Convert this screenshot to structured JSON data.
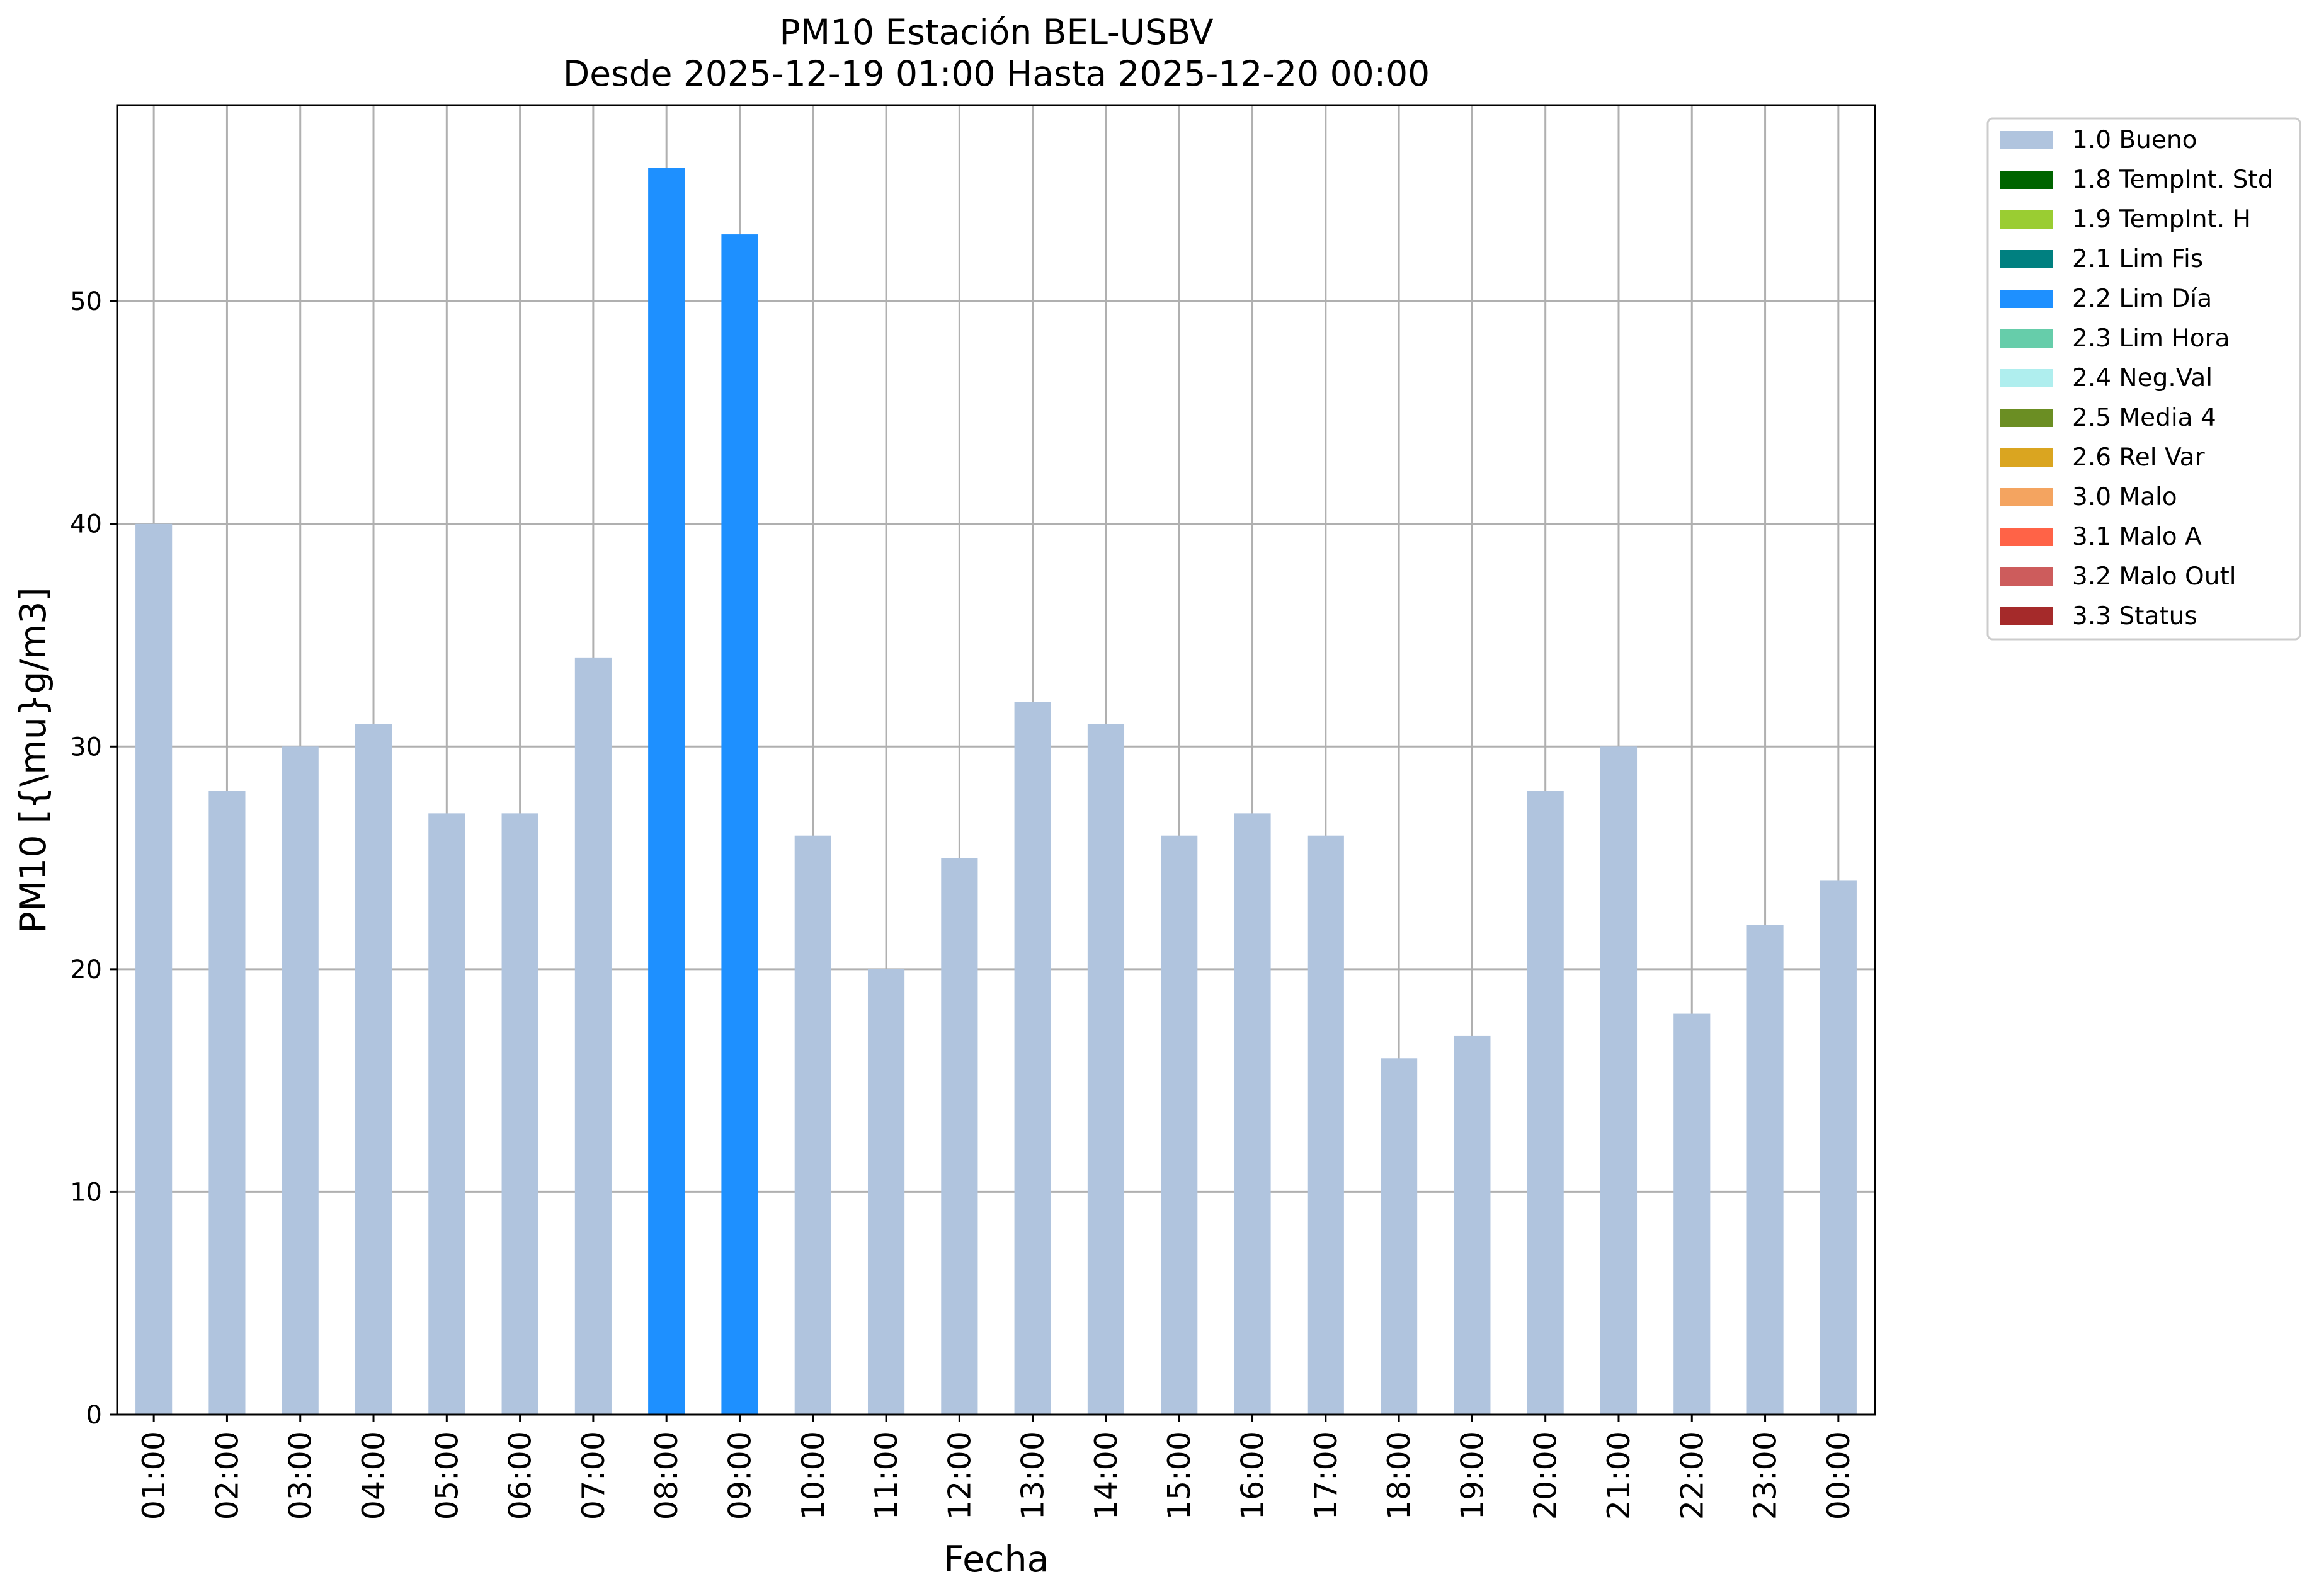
{
  "chart_data": {
    "type": "bar",
    "title": "PM10 Estación BEL-USBV",
    "subtitle": "Desde 2025-12-19 01:00 Hasta 2025-12-20 00:00",
    "xlabel": "Fecha",
    "ylabel": "PM10 [{\\mu}g/m3]",
    "ylim": [
      0,
      58.8
    ],
    "yticks": [
      0,
      10,
      20,
      30,
      40,
      50
    ],
    "grid": true,
    "legend_position": "outside right, top",
    "categories": [
      "01:00",
      "02:00",
      "03:00",
      "04:00",
      "05:00",
      "06:00",
      "07:00",
      "08:00",
      "09:00",
      "10:00",
      "11:00",
      "12:00",
      "13:00",
      "14:00",
      "15:00",
      "16:00",
      "17:00",
      "18:00",
      "19:00",
      "20:00",
      "21:00",
      "22:00",
      "23:00",
      "00:00"
    ],
    "values": [
      40,
      28,
      30,
      31,
      27,
      27,
      34,
      56,
      53,
      26,
      20,
      25,
      32,
      31,
      26,
      27,
      26,
      16,
      17,
      28,
      30,
      18,
      22,
      24
    ],
    "bar_flags": [
      "1.0 Bueno",
      "1.0 Bueno",
      "1.0 Bueno",
      "1.0 Bueno",
      "1.0 Bueno",
      "1.0 Bueno",
      "1.0 Bueno",
      "2.2 Lim Día",
      "2.2 Lim Día",
      "1.0 Bueno",
      "1.0 Bueno",
      "1.0 Bueno",
      "1.0 Bueno",
      "1.0 Bueno",
      "1.0 Bueno",
      "1.0 Bueno",
      "1.0 Bueno",
      "1.0 Bueno",
      "1.0 Bueno",
      "1.0 Bueno",
      "1.0 Bueno",
      "1.0 Bueno",
      "1.0 Bueno",
      "1.0 Bueno"
    ],
    "legend": [
      {
        "label": "1.0 Bueno",
        "color": "#b0c4de"
      },
      {
        "label": "1.8 TempInt. Std",
        "color": "#006400"
      },
      {
        "label": "1.9 TempInt. H",
        "color": "#9acd32"
      },
      {
        "label": "2.1 Lim Fis",
        "color": "#008080"
      },
      {
        "label": "2.2 Lim Día",
        "color": "#1e90ff"
      },
      {
        "label": "2.3 Lim Hora",
        "color": "#66cdaa"
      },
      {
        "label": "2.4 Neg.Val",
        "color": "#afeeee"
      },
      {
        "label": "2.5 Media 4",
        "color": "#6b8e23"
      },
      {
        "label": "2.6 Rel Var",
        "color": "#daa520"
      },
      {
        "label": "3.0 Malo",
        "color": "#f4a460"
      },
      {
        "label": "3.1 Malo A",
        "color": "#ff6347"
      },
      {
        "label": "3.2 Malo Outl",
        "color": "#cd5c5c"
      },
      {
        "label": "3.3 Status",
        "color": "#a52a2a"
      }
    ]
  }
}
